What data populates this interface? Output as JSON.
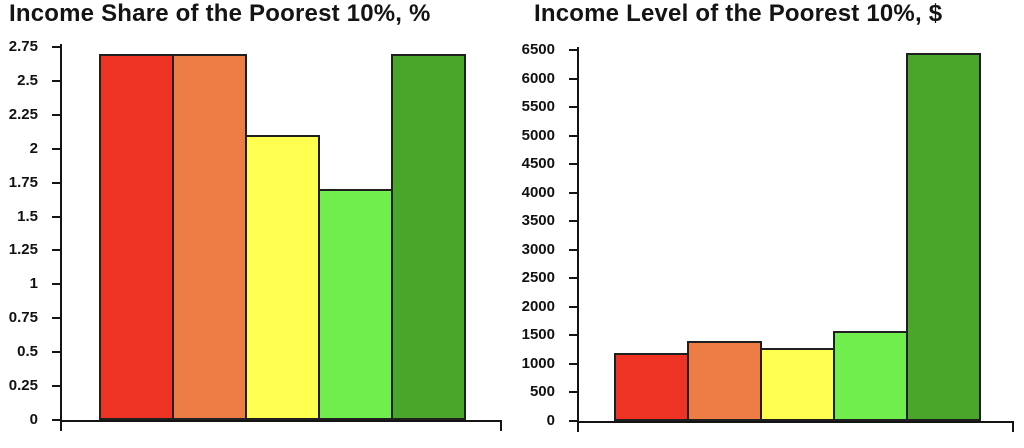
{
  "chart_data": [
    {
      "type": "bar",
      "title": "Income Share of the Poorest 10%, %",
      "values": [
        2.7,
        2.7,
        2.1,
        1.7,
        2.7
      ],
      "colors": [
        "#ee3223",
        "#ee7c45",
        "#feff4f",
        "#6fee4e",
        "#4aa52b"
      ],
      "bar_border_color": "#1f1f1f",
      "ylim": [
        0,
        2.75
      ],
      "ytick_step": 0.25,
      "yticks": [
        "2.75",
        "2.5",
        "2.25",
        "2",
        "1.75",
        "1.5",
        "1.25",
        "1",
        "0.75",
        "0.5",
        "0.25",
        "0"
      ],
      "xlabel": "",
      "ylabel": "",
      "grid": false,
      "legend": "none"
    },
    {
      "type": "bar",
      "title": "Income Level of the Poorest 10%, $",
      "values": [
        1200,
        1400,
        1280,
        1580,
        6450
      ],
      "colors": [
        "#ee3223",
        "#ee7c45",
        "#feff4f",
        "#6fee4e",
        "#4aa52b"
      ],
      "bar_border_color": "#1f1f1f",
      "ylim": [
        0,
        6500
      ],
      "ytick_step": 500,
      "yticks": [
        "6500",
        "6000",
        "5500",
        "5000",
        "4500",
        "4000",
        "3500",
        "3000",
        "2500",
        "2000",
        "1500",
        "1000",
        "500",
        "0"
      ],
      "xlabel": "",
      "ylabel": "",
      "grid": false,
      "legend": "none"
    }
  ]
}
